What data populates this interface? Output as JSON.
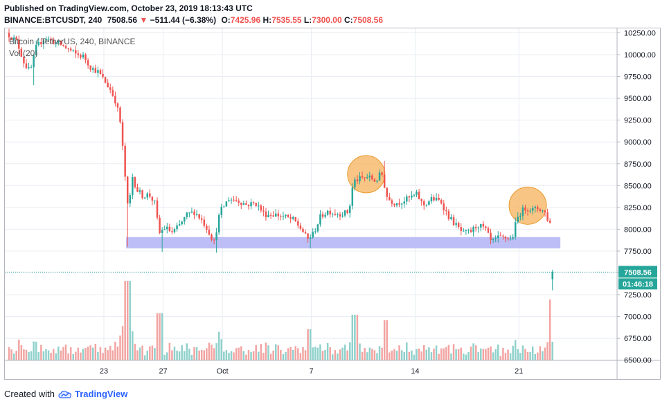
{
  "header": {
    "published": "Published on TradingView.com, October 23, 2019 18:13:43 UTC",
    "symbol": "BINANCE:BTCUSDT, 240",
    "last": "7508.56",
    "arrow": "▼",
    "change": "−511.44 (−6.38%)",
    "o_label": "O:",
    "o_value": "7425.96",
    "h_label": "H:",
    "h_value": "7535.55",
    "l_label": "L:",
    "l_value": "7300.00",
    "c_label": "C:",
    "c_value": "7508.56"
  },
  "legend": {
    "title": "Bitcoin / TetherUS, 240, BINANCE",
    "volume": "Vol (20)"
  },
  "footer": {
    "created_with": "Created with",
    "brand": "TradingView"
  },
  "colors": {
    "up": "#26a69a",
    "down": "#ef5350",
    "up_vol": "#8fd1cb",
    "down_vol": "#f2a4a2",
    "support_band": "#b3b3f5",
    "circle_fill": "#f6b25c",
    "axis_label_bg": "#26a69a",
    "grid": "#e8ecf2"
  },
  "chart_data": {
    "type": "candlestick",
    "title": "",
    "xlabel": "",
    "ylabel": "",
    "ylim": [
      6450,
      10300
    ],
    "y_ticks": [
      6500,
      6750,
      7000,
      7250,
      7500,
      7750,
      8000,
      8250,
      8500,
      8750,
      9000,
      9250,
      9500,
      9750,
      10000,
      10250
    ],
    "y_tick_labels": [
      "6500.00",
      "6750.00",
      "7000.00",
      "7250.00",
      "7500.00",
      "7750.00",
      "8000.00",
      "8250.00",
      "8500.00",
      "8750.00",
      "9000.00",
      "9250.00",
      "9500.00",
      "9750.00",
      "10000.00",
      "10250.00"
    ],
    "x_tick_labels": [
      "23",
      "27",
      "Oct",
      "7",
      "14",
      "21"
    ],
    "x_tick_days": [
      23,
      27,
      31,
      37,
      44,
      51
    ],
    "date_range_days": [
      16.6,
      53.3
    ],
    "current_price": 7508.56,
    "current_price_label": "7508.56",
    "countdown_label": "01:46:18",
    "support_zone": {
      "from_day": 24.5,
      "to_day": 53.8,
      "low": 7780,
      "high": 7910
    },
    "highlight_circles": [
      {
        "day": 40.7,
        "price": 8630
      },
      {
        "day": 51.6,
        "price": 8270
      }
    ],
    "price_keypoints": [
      [
        16.6,
        10250
      ],
      [
        17.3,
        10150
      ],
      [
        17.8,
        9900
      ],
      [
        18.2,
        9800
      ],
      [
        18.6,
        10080
      ],
      [
        19.2,
        10200
      ],
      [
        19.7,
        10150
      ],
      [
        20.2,
        10120
      ],
      [
        20.8,
        10060
      ],
      [
        21.3,
        10000
      ],
      [
        21.8,
        9980
      ],
      [
        22.3,
        9850
      ],
      [
        22.8,
        9800
      ],
      [
        23.2,
        9700
      ],
      [
        23.6,
        9600
      ],
      [
        24.0,
        9450
      ],
      [
        24.3,
        9200
      ],
      [
        24.6,
        8600
      ],
      [
        24.8,
        8200
      ],
      [
        25.1,
        8600
      ],
      [
        25.4,
        8450
      ],
      [
        25.8,
        8380
      ],
      [
        26.2,
        8400
      ],
      [
        26.6,
        8300
      ],
      [
        26.9,
        7950
      ],
      [
        27.3,
        8020
      ],
      [
        27.8,
        7960
      ],
      [
        28.3,
        8050
      ],
      [
        28.8,
        8170
      ],
      [
        29.3,
        8200
      ],
      [
        29.8,
        8100
      ],
      [
        30.2,
        7990
      ],
      [
        30.6,
        7850
      ],
      [
        31.0,
        8200
      ],
      [
        31.6,
        8350
      ],
      [
        32.2,
        8330
      ],
      [
        32.8,
        8280
      ],
      [
        33.4,
        8300
      ],
      [
        34.0,
        8170
      ],
      [
        34.7,
        8170
      ],
      [
        35.4,
        8140
      ],
      [
        36.0,
        8100
      ],
      [
        36.5,
        8000
      ],
      [
        36.9,
        7880
      ],
      [
        37.3,
        7950
      ],
      [
        37.8,
        8150
      ],
      [
        38.3,
        8210
      ],
      [
        38.8,
        8180
      ],
      [
        39.3,
        8180
      ],
      [
        39.7,
        8200
      ],
      [
        40.0,
        8550
      ],
      [
        40.5,
        8580
      ],
      [
        41.0,
        8600
      ],
      [
        41.5,
        8550
      ],
      [
        41.9,
        8650
      ],
      [
        42.3,
        8350
      ],
      [
        42.8,
        8300
      ],
      [
        43.3,
        8320
      ],
      [
        43.8,
        8360
      ],
      [
        44.3,
        8400
      ],
      [
        44.7,
        8270
      ],
      [
        45.3,
        8350
      ],
      [
        45.9,
        8320
      ],
      [
        46.4,
        8150
      ],
      [
        46.9,
        8050
      ],
      [
        47.4,
        7950
      ],
      [
        47.9,
        7970
      ],
      [
        48.4,
        8050
      ],
      [
        48.9,
        8000
      ],
      [
        49.3,
        7850
      ],
      [
        49.8,
        7900
      ],
      [
        50.3,
        7900
      ],
      [
        50.7,
        7880
      ],
      [
        51.0,
        8100
      ],
      [
        51.3,
        8200
      ],
      [
        51.7,
        8250
      ],
      [
        52.1,
        8220
      ],
      [
        52.5,
        8240
      ],
      [
        52.9,
        8200
      ],
      [
        53.2,
        8080
      ],
      [
        53.5,
        8020
      ],
      [
        53.7,
        7500
      ],
      [
        53.9,
        7510
      ]
    ]
  }
}
